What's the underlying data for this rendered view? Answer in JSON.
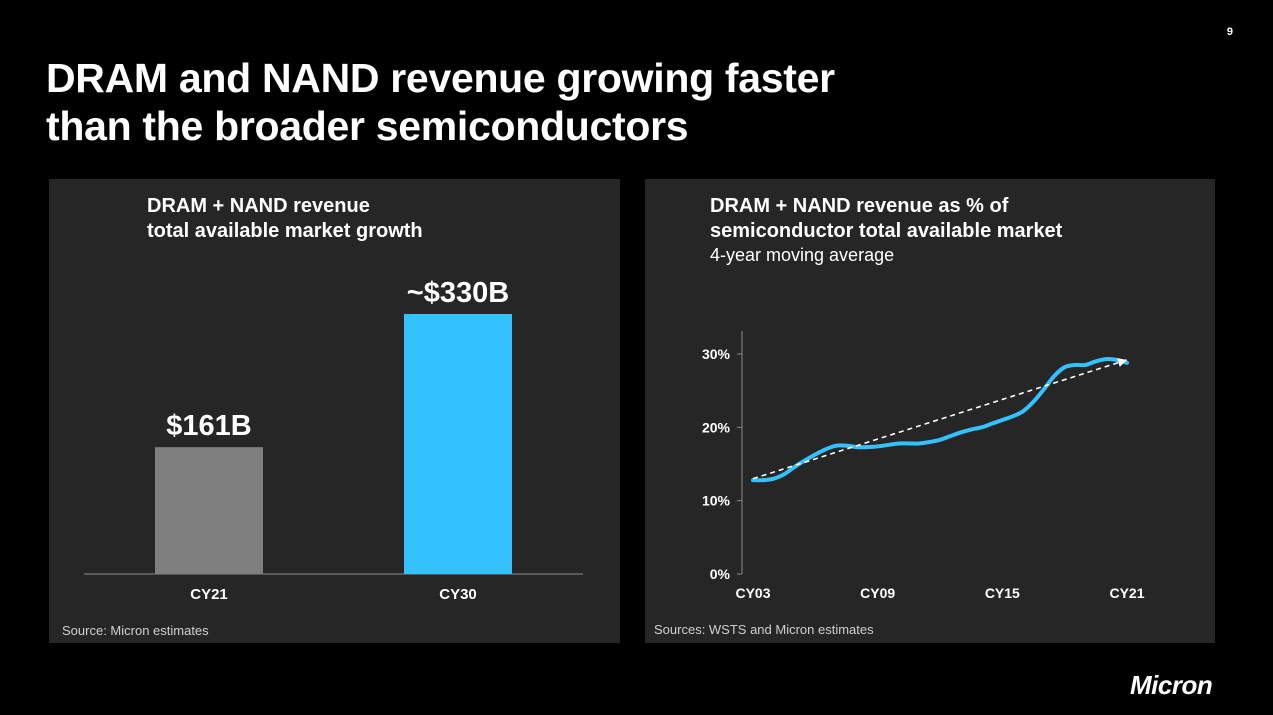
{
  "page_number": "9",
  "title": [
    "DRAM and NAND revenue growing faster",
    "than the broader semiconductors"
  ],
  "logo_text": "Micron",
  "colors": {
    "accent_blue": "#33C1FF",
    "bar_gray": "#7F7F7F",
    "panel_bg": "#262626",
    "trend": "#FFFFFF"
  },
  "left_panel": {
    "title": [
      "DRAM + NAND revenue",
      "total available market growth"
    ],
    "source": "Source: Micron estimates"
  },
  "right_panel": {
    "title": [
      "DRAM + NAND revenue as % of",
      "semiconductor total available market"
    ],
    "subtitle": "4-year moving average",
    "source": "Sources: WSTS and Micron estimates"
  },
  "chart_data": [
    {
      "type": "bar",
      "categories": [
        "CY21",
        "CY30"
      ],
      "values": [
        161,
        330
      ],
      "value_labels": [
        "$161B",
        "~$330B"
      ],
      "colors": [
        "#7F7F7F",
        "#33C1FF"
      ],
      "unit": "$B",
      "grid": false,
      "legend": "none"
    },
    {
      "type": "line",
      "x_tick_labels": [
        "CY03",
        "CY09",
        "CY15",
        "CY21"
      ],
      "x_ticks": [
        2003,
        2009,
        2015,
        2021
      ],
      "y_tick_labels": [
        "0%",
        "10%",
        "20%",
        "30%"
      ],
      "y_ticks": [
        0,
        10,
        20,
        30
      ],
      "ylim": [
        0,
        33
      ],
      "xlim": [
        2003,
        2021
      ],
      "grid": false,
      "legend": "none",
      "series": [
        {
          "color": "#33C1FF",
          "style": "solid",
          "x": [
            2003,
            2003.5,
            2004,
            2004.5,
            2005,
            2005.5,
            2006,
            2006.5,
            2007,
            2007.5,
            2008,
            2008.5,
            2009,
            2009.5,
            2010,
            2010.5,
            2011,
            2011.5,
            2012,
            2012.5,
            2013,
            2013.5,
            2014,
            2014.5,
            2015,
            2015.5,
            2016,
            2016.5,
            2017,
            2017.5,
            2018,
            2018.5,
            2019,
            2019.5,
            2020,
            2020.5,
            2021
          ],
          "values": [
            12.8,
            12.8,
            13.0,
            13.6,
            14.6,
            15.5,
            16.3,
            17.0,
            17.5,
            17.5,
            17.3,
            17.3,
            17.4,
            17.6,
            17.8,
            17.8,
            17.8,
            18.0,
            18.3,
            18.8,
            19.3,
            19.7,
            20.0,
            20.5,
            21.0,
            21.5,
            22.2,
            23.5,
            25.2,
            27.0,
            28.2,
            28.5,
            28.5,
            29.0,
            29.3,
            29.2,
            28.8
          ]
        },
        {
          "color": "#FFFFFF",
          "style": "dashed",
          "x": [
            2003,
            2021
          ],
          "values": [
            13.0,
            29.2
          ]
        }
      ]
    }
  ]
}
